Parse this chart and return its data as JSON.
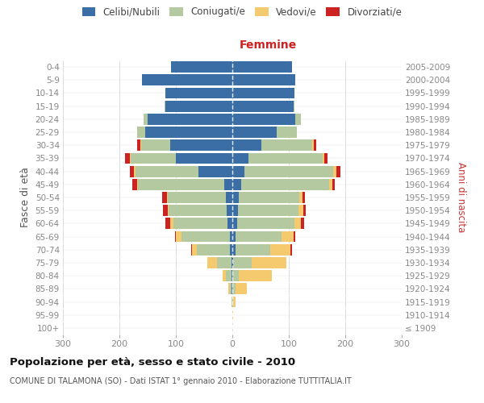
{
  "age_groups": [
    "100+",
    "95-99",
    "90-94",
    "85-89",
    "80-84",
    "75-79",
    "70-74",
    "65-69",
    "60-64",
    "55-59",
    "50-54",
    "45-49",
    "40-44",
    "35-39",
    "30-34",
    "25-29",
    "20-24",
    "15-19",
    "10-14",
    "5-9",
    "0-4"
  ],
  "birth_years": [
    "≤ 1909",
    "1910-1914",
    "1915-1919",
    "1920-1924",
    "1925-1929",
    "1930-1934",
    "1935-1939",
    "1940-1944",
    "1945-1949",
    "1950-1954",
    "1955-1959",
    "1960-1964",
    "1965-1969",
    "1970-1974",
    "1975-1979",
    "1980-1984",
    "1985-1989",
    "1990-1994",
    "1995-1999",
    "2000-2004",
    "2005-2009"
  ],
  "males": {
    "celibi": [
      0,
      0,
      0,
      1,
      1,
      2,
      5,
      5,
      8,
      10,
      12,
      15,
      60,
      100,
      110,
      155,
      150,
      118,
      118,
      160,
      108
    ],
    "coniugati": [
      0,
      0,
      1,
      3,
      10,
      25,
      58,
      85,
      97,
      103,
      102,
      152,
      112,
      80,
      52,
      14,
      7,
      2,
      0,
      0,
      0
    ],
    "vedovi": [
      0,
      0,
      0,
      3,
      6,
      18,
      8,
      10,
      5,
      2,
      2,
      2,
      2,
      2,
      1,
      0,
      0,
      0,
      0,
      0,
      0
    ],
    "divorziati": [
      0,
      0,
      0,
      0,
      0,
      0,
      2,
      2,
      8,
      8,
      8,
      8,
      8,
      8,
      5,
      0,
      0,
      0,
      0,
      0,
      0
    ]
  },
  "females": {
    "nubili": [
      0,
      0,
      0,
      0,
      0,
      2,
      5,
      5,
      8,
      10,
      12,
      15,
      22,
      28,
      52,
      78,
      112,
      108,
      110,
      112,
      106
    ],
    "coniugate": [
      0,
      0,
      1,
      5,
      12,
      32,
      62,
      82,
      102,
      107,
      107,
      157,
      157,
      132,
      90,
      36,
      10,
      2,
      0,
      0,
      0
    ],
    "vedove": [
      0,
      2,
      5,
      20,
      58,
      62,
      36,
      22,
      12,
      8,
      5,
      5,
      5,
      3,
      2,
      0,
      0,
      0,
      0,
      0,
      0
    ],
    "divorziate": [
      0,
      0,
      0,
      0,
      0,
      0,
      2,
      2,
      5,
      5,
      5,
      5,
      8,
      5,
      5,
      0,
      0,
      0,
      0,
      0,
      0
    ]
  },
  "colors": {
    "celibi": "#3b6ea5",
    "coniugati": "#b5c9a0",
    "vedovi": "#f5c96e",
    "divorziati": "#cc2222"
  },
  "xlim": 300,
  "title": "Popolazione per età, sesso e stato civile - 2010",
  "subtitle": "COMUNE DI TALAMONA (SO) - Dati ISTAT 1° gennaio 2010 - Elaborazione TUTTITALIA.IT",
  "ylabel_left": "Fasce di età",
  "ylabel_right": "Anni di nascita",
  "label_femmine": "Femmine",
  "legend_labels": [
    "Celibi/Nubili",
    "Coniugati/e",
    "Vedovi/e",
    "Divorziati/e"
  ],
  "bg_color": "#ffffff",
  "grid_color": "#cccccc",
  "tick_label_color": "#888888"
}
